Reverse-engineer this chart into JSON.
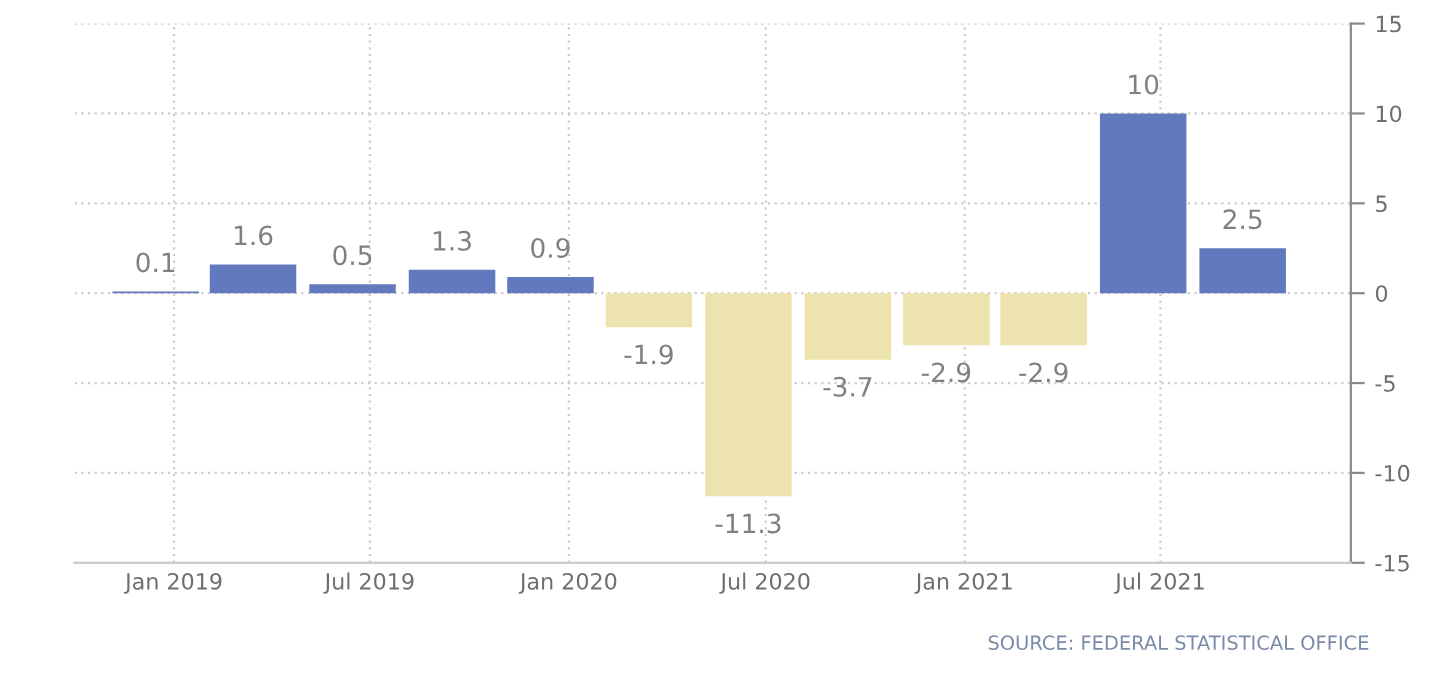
{
  "chart_data": {
    "type": "bar",
    "x": [
      "2018-12-15",
      "2019-03-15",
      "2019-06-15",
      "2019-09-15",
      "2019-12-15",
      "2020-03-15",
      "2020-06-15",
      "2020-09-15",
      "2020-12-15",
      "2021-03-15",
      "2021-06-15",
      "2021-09-15"
    ],
    "values": [
      0.1,
      1.6,
      0.5,
      1.3,
      0.9,
      -1.9,
      -11.3,
      -3.7,
      -2.9,
      -2.9,
      10,
      2.5
    ],
    "colors": [
      "#6279bd",
      "#6279bd",
      "#6279bd",
      "#6279bd",
      "#6279bd",
      "#ede3ae",
      "#ede3ae",
      "#ede3ae",
      "#ede3ae",
      "#ede3ae",
      "#6279bd",
      "#6279bd"
    ],
    "data_labels": true,
    "xlim": [
      "2018-10-01",
      "2021-12-24"
    ],
    "xticks": [
      {
        "value": "2019-01-01",
        "label": "Jan 2019"
      },
      {
        "value": "2019-07-01",
        "label": "Jul 2019"
      },
      {
        "value": "2020-01-01",
        "label": "Jan 2020"
      },
      {
        "value": "2020-07-01",
        "label": "Jul 2020"
      },
      {
        "value": "2021-01-01",
        "label": "Jan 2021"
      },
      {
        "value": "2021-07-01",
        "label": "Jul 2021"
      }
    ],
    "ylim": [
      -15,
      15
    ],
    "yticks": [
      -15,
      -10,
      -5,
      0,
      5,
      10,
      15
    ],
    "grid": true,
    "annotations": [
      "SOURCE: FEDERAL STATISTICAL OFFICE"
    ]
  }
}
